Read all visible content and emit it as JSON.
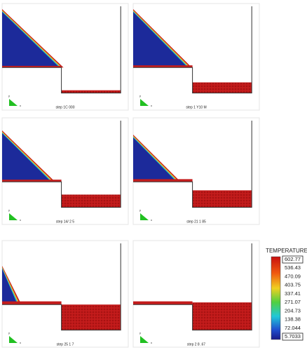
{
  "panels": [
    {
      "label": "step 1C 000"
    },
    {
      "label": "step 1 Y10 M"
    },
    {
      "label": "step 14/ 2 5"
    },
    {
      "label": "step 21 1 85"
    },
    {
      "label": "step 25 1 7"
    },
    {
      "label": "step 2 8 .67"
    }
  ],
  "axis_icon": {
    "y": "y",
    "x": "x"
  },
  "colorbar": {
    "title": "TEMPERATURE",
    "labels": [
      "602.77",
      "536.43",
      "470.09",
      "403.75",
      "337.41",
      "271.07",
      "204.73",
      "138.38",
      "72.044",
      "5.7033"
    ]
  }
}
